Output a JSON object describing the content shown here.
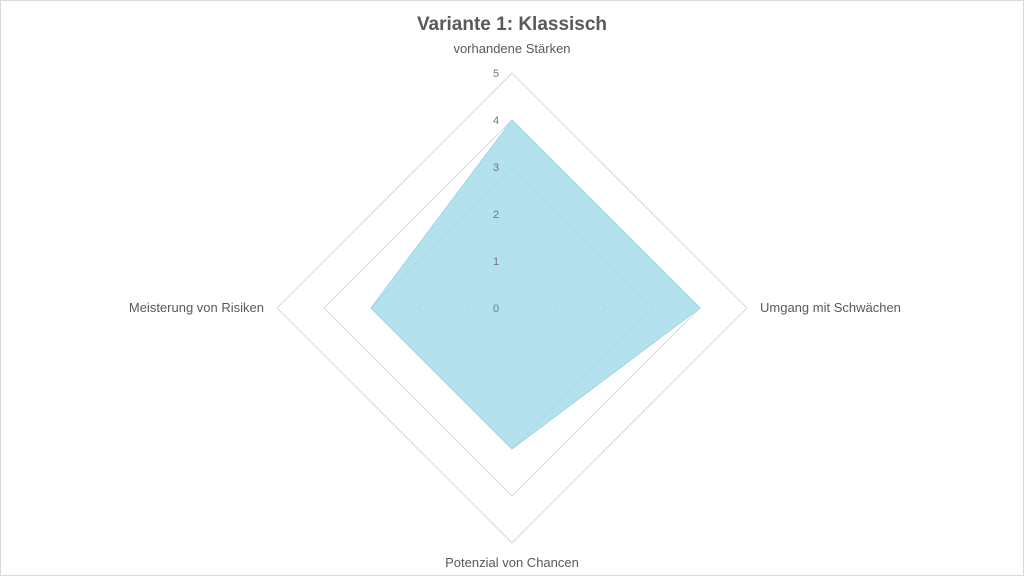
{
  "chart_data": {
    "type": "radar",
    "title": "Variante 1: Klassisch",
    "axes": [
      "vorhandene Stärken",
      "Umgang mit Schwächen",
      "Potenzial von Chancen",
      "Meisterung von Risiken"
    ],
    "scale": {
      "min": 0,
      "max": 5,
      "ticks": [
        0,
        1,
        2,
        3,
        4,
        5
      ]
    },
    "series": [
      {
        "values": [
          4,
          4,
          3,
          3
        ],
        "color": "#9dd8e8"
      }
    ],
    "grid": true,
    "legend": "none"
  }
}
